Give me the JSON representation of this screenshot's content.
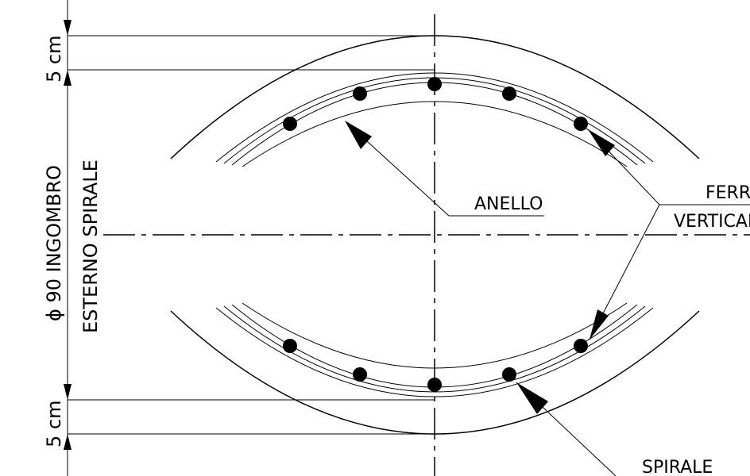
{
  "labels": {
    "dim_top": "5 cm",
    "dim_bottom": "5 cm",
    "diameter_line1": "ϕ 90 INGOMBRO",
    "diameter_line2": "ESTERNO SPIRALE",
    "anello": "ANELLO",
    "ferri_line1": "FERRI",
    "ferri_line2": "VERTICALI",
    "spirale": "SPIRALE"
  }
}
